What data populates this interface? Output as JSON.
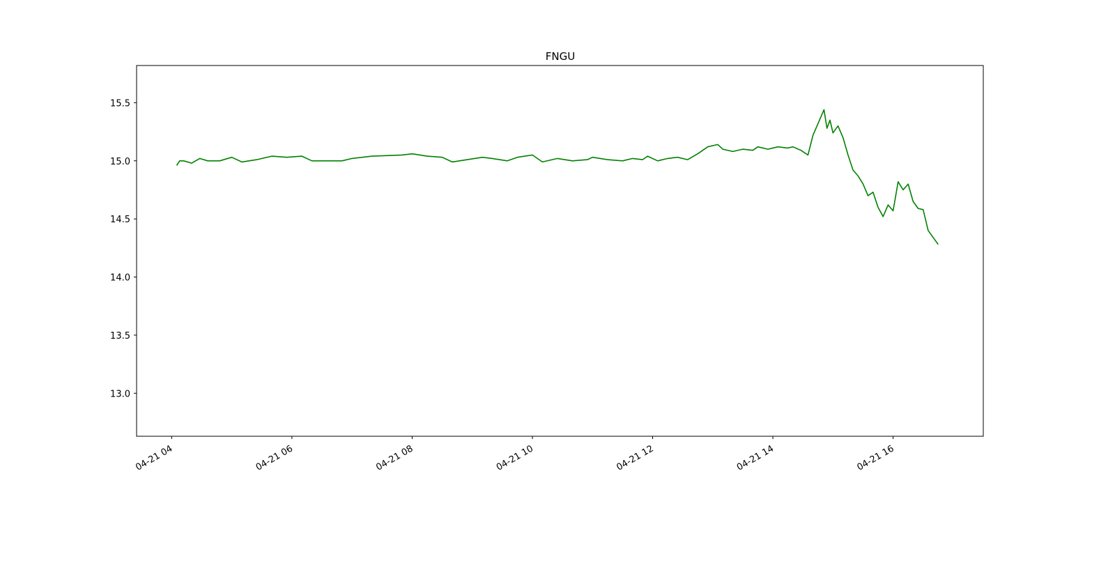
{
  "chart_data": {
    "type": "line",
    "title": "FNGU",
    "xlabel": "",
    "ylabel": "",
    "x_axis_kind": "datetime",
    "xlim": [
      "2023-04-21 03:25",
      "2023-04-21 17:30"
    ],
    "ylim": [
      12.63,
      15.82
    ],
    "x_ticks": [
      "04-21 04",
      "04-21 06",
      "04-21 08",
      "04-21 10",
      "04-21 12",
      "04-21 14",
      "04-21 16"
    ],
    "x_tick_values": [
      "2023-04-21 04:00",
      "2023-04-21 06:00",
      "2023-04-21 08:00",
      "2023-04-21 10:00",
      "2023-04-21 12:00",
      "2023-04-21 14:00",
      "2023-04-21 16:00"
    ],
    "y_ticks": [
      13.0,
      13.5,
      14.0,
      14.5,
      15.0,
      15.5
    ],
    "grid": false,
    "legend": "none",
    "series": [
      {
        "color": "#008000",
        "points": [
          [
            "2023-04-21 04:05",
            14.96
          ],
          [
            "2023-04-21 04:08",
            15.0
          ],
          [
            "2023-04-21 04:12",
            15.0
          ],
          [
            "2023-04-21 04:20",
            14.98
          ],
          [
            "2023-04-21 04:28",
            15.02
          ],
          [
            "2023-04-21 04:36",
            15.0
          ],
          [
            "2023-04-21 04:48",
            15.0
          ],
          [
            "2023-04-21 05:00",
            15.03
          ],
          [
            "2023-04-21 05:10",
            14.99
          ],
          [
            "2023-04-21 05:25",
            15.01
          ],
          [
            "2023-04-21 05:40",
            15.04
          ],
          [
            "2023-04-21 05:55",
            15.03
          ],
          [
            "2023-04-21 06:10",
            15.04
          ],
          [
            "2023-04-21 06:20",
            15.0
          ],
          [
            "2023-04-21 06:50",
            15.0
          ],
          [
            "2023-04-21 07:00",
            15.02
          ],
          [
            "2023-04-21 07:20",
            15.04
          ],
          [
            "2023-04-21 07:50",
            15.05
          ],
          [
            "2023-04-21 08:00",
            15.06
          ],
          [
            "2023-04-21 08:15",
            15.04
          ],
          [
            "2023-04-21 08:30",
            15.03
          ],
          [
            "2023-04-21 08:40",
            14.99
          ],
          [
            "2023-04-21 08:55",
            15.01
          ],
          [
            "2023-04-21 09:10",
            15.03
          ],
          [
            "2023-04-21 09:20",
            15.02
          ],
          [
            "2023-04-21 09:35",
            15.0
          ],
          [
            "2023-04-21 09:45",
            15.03
          ],
          [
            "2023-04-21 10:00",
            15.05
          ],
          [
            "2023-04-21 10:10",
            14.99
          ],
          [
            "2023-04-21 10:25",
            15.02
          ],
          [
            "2023-04-21 10:40",
            15.0
          ],
          [
            "2023-04-21 10:55",
            15.01
          ],
          [
            "2023-04-21 11:00",
            15.03
          ],
          [
            "2023-04-21 11:15",
            15.01
          ],
          [
            "2023-04-21 11:30",
            15.0
          ],
          [
            "2023-04-21 11:40",
            15.02
          ],
          [
            "2023-04-21 11:50",
            15.01
          ],
          [
            "2023-04-21 11:55",
            15.04
          ],
          [
            "2023-04-21 12:05",
            15.0
          ],
          [
            "2023-04-21 12:15",
            15.02
          ],
          [
            "2023-04-21 12:25",
            15.03
          ],
          [
            "2023-04-21 12:35",
            15.01
          ],
          [
            "2023-04-21 12:45",
            15.06
          ],
          [
            "2023-04-21 12:55",
            15.12
          ],
          [
            "2023-04-21 13:05",
            15.14
          ],
          [
            "2023-04-21 13:10",
            15.1
          ],
          [
            "2023-04-21 13:20",
            15.08
          ],
          [
            "2023-04-21 13:30",
            15.1
          ],
          [
            "2023-04-21 13:40",
            15.09
          ],
          [
            "2023-04-21 13:45",
            15.12
          ],
          [
            "2023-04-21 13:55",
            15.1
          ],
          [
            "2023-04-21 14:05",
            15.12
          ],
          [
            "2023-04-21 14:15",
            15.11
          ],
          [
            "2023-04-21 14:20",
            15.12
          ],
          [
            "2023-04-21 14:28",
            15.09
          ],
          [
            "2023-04-21 14:35",
            15.05
          ],
          [
            "2023-04-21 14:40",
            15.22
          ],
          [
            "2023-04-21 14:45",
            15.32
          ],
          [
            "2023-04-21 14:48",
            15.38
          ],
          [
            "2023-04-21 14:51",
            15.44
          ],
          [
            "2023-04-21 14:54",
            15.28
          ],
          [
            "2023-04-21 14:57",
            15.35
          ],
          [
            "2023-04-21 15:00",
            15.24
          ],
          [
            "2023-04-21 15:05",
            15.3
          ],
          [
            "2023-04-21 15:10",
            15.2
          ],
          [
            "2023-04-21 15:15",
            15.05
          ],
          [
            "2023-04-21 15:20",
            14.92
          ],
          [
            "2023-04-21 15:25",
            14.87
          ],
          [
            "2023-04-21 15:30",
            14.8
          ],
          [
            "2023-04-21 15:35",
            14.7
          ],
          [
            "2023-04-21 15:40",
            14.73
          ],
          [
            "2023-04-21 15:45",
            14.6
          ],
          [
            "2023-04-21 15:50",
            14.52
          ],
          [
            "2023-04-21 15:55",
            14.62
          ],
          [
            "2023-04-21 16:00",
            14.57
          ],
          [
            "2023-04-21 16:05",
            14.82
          ],
          [
            "2023-04-21 16:10",
            14.75
          ],
          [
            "2023-04-21 16:15",
            14.8
          ],
          [
            "2023-04-21 16:20",
            14.65
          ],
          [
            "2023-04-21 16:25",
            14.59
          ],
          [
            "2023-04-21 16:30",
            14.58
          ],
          [
            "2023-04-21 16:35",
            14.4
          ],
          [
            "2023-04-21 16:40",
            14.34
          ],
          [
            "2023-04-21 16:45",
            14.28
          ]
        ]
      }
    ]
  }
}
